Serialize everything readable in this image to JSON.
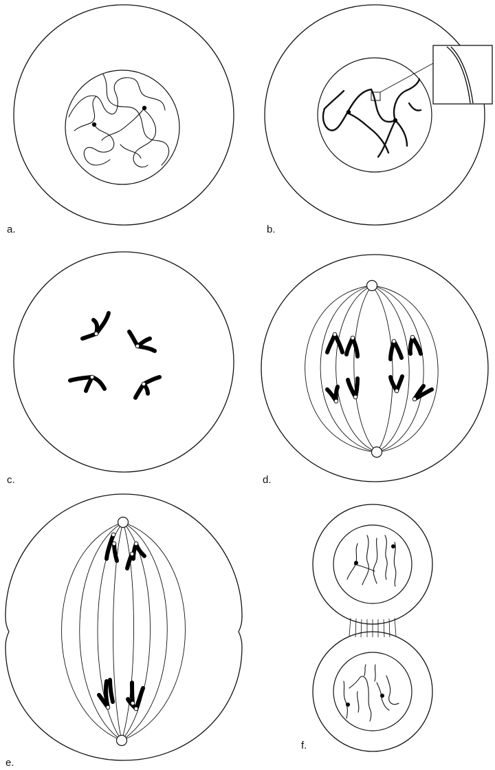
{
  "panels": {
    "a": {
      "label": "a."
    },
    "b": {
      "label": "b."
    },
    "c": {
      "label": "c."
    },
    "d": {
      "label": "d."
    },
    "e": {
      "label": "e."
    },
    "f": {
      "label": "f."
    }
  }
}
